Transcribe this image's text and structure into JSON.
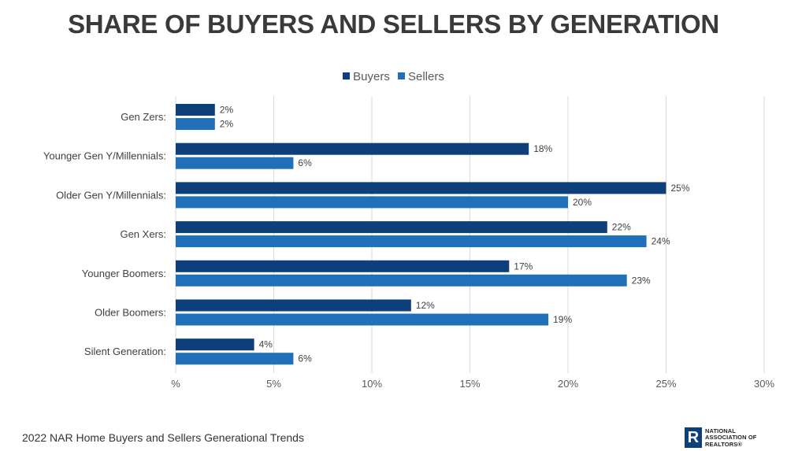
{
  "title": "SHARE OF BUYERS AND SELLERS BY GENERATION",
  "footer": "2022 NAR Home Buyers and Sellers Generational Trends",
  "logo": {
    "lines": [
      "NATIONAL",
      "ASSOCIATION OF",
      "REALTORS®"
    ],
    "mark": "R"
  },
  "colors": {
    "buyers": "#0d3f7a",
    "sellers": "#1f6fb9"
  },
  "chart_data": {
    "type": "bar",
    "orientation": "horizontal",
    "categories": [
      "Gen Zers:",
      "Younger Gen Y/Millennials:",
      "Older Gen Y/Millennials:",
      "Gen Xers:",
      "Younger Boomers:",
      "Older Boomers:",
      "Silent Generation:"
    ],
    "series": [
      {
        "name": "Buyers",
        "values": [
          2,
          18,
          25,
          22,
          17,
          12,
          4
        ],
        "labels": [
          "2%",
          "18%",
          "25%",
          "22%",
          "17%",
          "12%",
          "4%"
        ]
      },
      {
        "name": "Sellers",
        "values": [
          2,
          6,
          20,
          24,
          23,
          19,
          6
        ],
        "labels": [
          "2%",
          "6%",
          "20%",
          "24%",
          "23%",
          "19%",
          "6%"
        ]
      }
    ],
    "xlim": [
      0,
      30
    ],
    "xticks": [
      0,
      5,
      10,
      15,
      20,
      25,
      30
    ],
    "xtick_labels": [
      "%",
      "5%",
      "10%",
      "15%",
      "20%",
      "25%",
      "30%"
    ],
    "grid": "vertical",
    "legend": "top-center"
  }
}
